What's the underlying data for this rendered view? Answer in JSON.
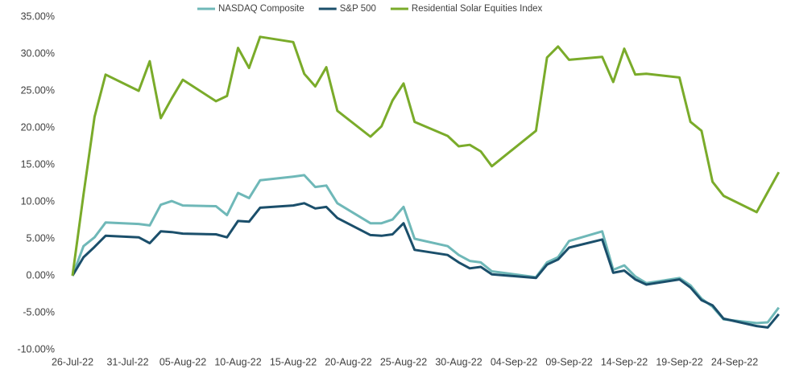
{
  "chart_data": {
    "type": "line",
    "x": [
      "26-Jul-22",
      "27-Jul-22",
      "28-Jul-22",
      "29-Jul-22",
      "01-Aug-22",
      "02-Aug-22",
      "03-Aug-22",
      "04-Aug-22",
      "05-Aug-22",
      "08-Aug-22",
      "09-Aug-22",
      "10-Aug-22",
      "11-Aug-22",
      "12-Aug-22",
      "15-Aug-22",
      "16-Aug-22",
      "17-Aug-22",
      "18-Aug-22",
      "19-Aug-22",
      "22-Aug-22",
      "23-Aug-22",
      "24-Aug-22",
      "25-Aug-22",
      "26-Aug-22",
      "29-Aug-22",
      "30-Aug-22",
      "31-Aug-22",
      "01-Sep-22",
      "02-Sep-22",
      "06-Sep-22",
      "07-Sep-22",
      "08-Sep-22",
      "09-Sep-22",
      "12-Sep-22",
      "13-Sep-22",
      "14-Sep-22",
      "15-Sep-22",
      "16-Sep-22",
      "19-Sep-22",
      "20-Sep-22",
      "21-Sep-22",
      "22-Sep-22",
      "23-Sep-22",
      "26-Sep-22",
      "27-Sep-22",
      "28-Sep-22"
    ],
    "series": [
      {
        "name": "NASDAQ Composite",
        "color": "#6fb8b8",
        "values": [
          0,
          4.0,
          5.2,
          7.2,
          7.0,
          6.8,
          9.6,
          10.1,
          9.5,
          9.4,
          8.2,
          11.2,
          10.5,
          12.9,
          13.4,
          13.6,
          12.0,
          12.2,
          9.8,
          7.1,
          7.1,
          7.6,
          9.3,
          5.0,
          4.0,
          2.8,
          2.0,
          1.8,
          0.6,
          -0.2,
          1.8,
          2.5,
          4.7,
          6.0,
          0.8,
          1.4,
          -0.1,
          -1.0,
          -0.3,
          -1.3,
          -3.1,
          -4.2,
          -5.9,
          -6.4,
          -6.3,
          -4.3
        ]
      },
      {
        "name": "S&P 500",
        "color": "#1b4f6b",
        "values": [
          0,
          2.5,
          3.9,
          5.4,
          5.2,
          4.4,
          6.0,
          5.9,
          5.7,
          5.6,
          5.2,
          7.4,
          7.3,
          9.2,
          9.5,
          9.8,
          9.1,
          9.3,
          7.8,
          5.5,
          5.4,
          5.6,
          7.1,
          3.5,
          2.8,
          1.8,
          1.0,
          1.2,
          0.2,
          -0.3,
          1.5,
          2.2,
          3.8,
          4.9,
          0.4,
          0.7,
          -0.5,
          -1.2,
          -0.5,
          -1.6,
          -3.3,
          -4.0,
          -5.8,
          -6.8,
          -7.0,
          -5.2
        ]
      },
      {
        "name": "Residential Solar Equities Index",
        "color": "#7aab2a",
        "values": [
          0,
          11,
          21.5,
          27.2,
          25,
          29,
          21.3,
          24,
          26.5,
          23.6,
          24.3,
          30.8,
          28.1,
          32.3,
          31.6,
          27.3,
          25.6,
          28.2,
          22.3,
          18.8,
          20.2,
          23.7,
          26,
          20.8,
          18.9,
          17.5,
          17.7,
          16.8,
          14.8,
          19.6,
          29.5,
          31,
          29.2,
          29.6,
          26.2,
          30.7,
          27.2,
          27.3,
          26.8,
          20.8,
          19.6,
          12.7,
          10.8,
          8.6,
          11.3,
          14
        ]
      }
    ],
    "xticks": [
      "26-Jul-22",
      "31-Jul-22",
      "05-Aug-22",
      "10-Aug-22",
      "15-Aug-22",
      "20-Aug-22",
      "25-Aug-22",
      "30-Aug-22",
      "04-Sep-22",
      "09-Sep-22",
      "14-Sep-22",
      "19-Sep-22",
      "24-Sep-22"
    ],
    "ylim": [
      -10,
      35
    ],
    "yticks": [
      {
        "value": -10,
        "label": "-10.00%"
      },
      {
        "value": -5,
        "label": "-5.00%"
      },
      {
        "value": 0,
        "label": "0.00%"
      },
      {
        "value": 5,
        "label": "5.00%"
      },
      {
        "value": 10,
        "label": "10.00%"
      },
      {
        "value": 15,
        "label": "15.00%"
      },
      {
        "value": 20,
        "label": "20.00%"
      },
      {
        "value": 25,
        "label": "25.00%"
      },
      {
        "value": 30,
        "label": "30.00%"
      },
      {
        "value": 35,
        "label": "35.00%"
      }
    ],
    "legend": "top",
    "grid": false
  }
}
